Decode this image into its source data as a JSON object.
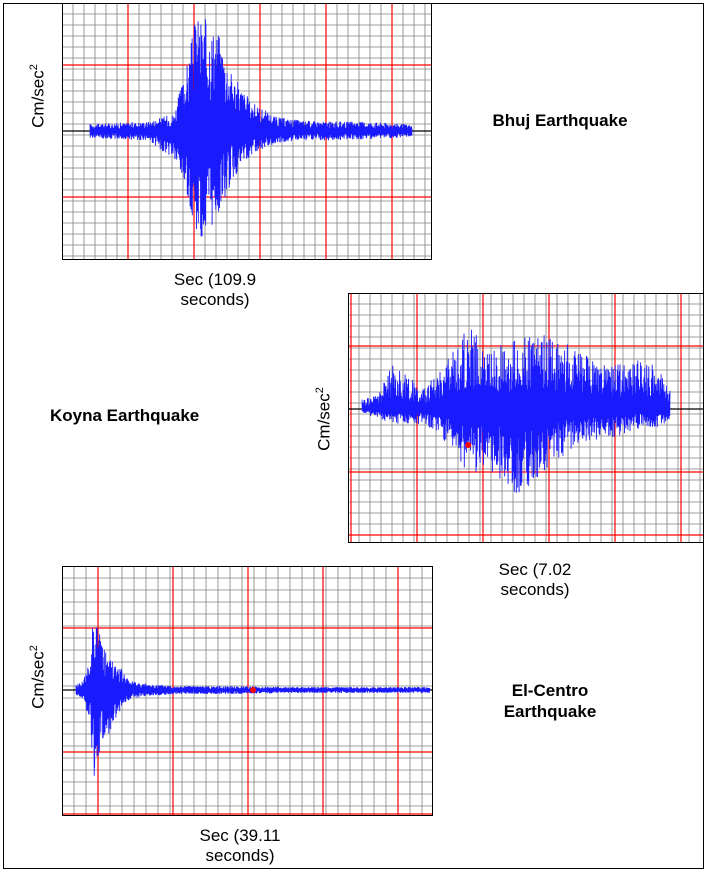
{
  "chart_data": [
    {
      "type": "line",
      "title": "Bhuj Earthquake",
      "ylabel_base": "Cm/sec",
      "ylabel_sup": "2",
      "xlabel_line1": "Sec (109.9",
      "xlabel_line2": "seconds)",
      "duration_seconds": 109.9,
      "grid": true,
      "colors": {
        "trace": "#1a1aff",
        "major_grid": "#ff0000",
        "minor_grid": "#808080",
        "axis": "#000000"
      },
      "envelope": {
        "x": [
          0,
          0.18,
          0.26,
          0.3,
          0.33,
          0.36,
          0.4,
          0.44,
          0.5,
          0.58,
          0.66,
          0.75,
          0.85,
          0.94,
          1.0
        ],
        "y_pos": [
          0.06,
          0.08,
          0.15,
          0.55,
          1.0,
          0.95,
          0.85,
          0.5,
          0.25,
          0.12,
          0.09,
          0.08,
          0.08,
          0.07,
          0.05
        ],
        "y_neg": [
          0.06,
          0.08,
          0.25,
          0.55,
          0.85,
          1.0,
          0.7,
          0.45,
          0.2,
          0.1,
          0.08,
          0.08,
          0.07,
          0.06,
          0.05
        ]
      }
    },
    {
      "type": "line",
      "title": "Koyna Earthquake",
      "ylabel_base": "Cm/sec",
      "ylabel_sup": "2",
      "xlabel_line1": "Sec (7.02",
      "xlabel_line2": "seconds)",
      "duration_seconds": 7.02,
      "grid": true,
      "colors": {
        "trace": "#1a1aff",
        "major_grid": "#ff0000",
        "minor_grid": "#808080",
        "axis": "#000000",
        "marker": "#ff0000"
      },
      "envelope": {
        "x": [
          0,
          0.05,
          0.1,
          0.2,
          0.3,
          0.35,
          0.4,
          0.5,
          0.6,
          0.7,
          0.8,
          0.9,
          0.95,
          1.0
        ],
        "y_pos": [
          0.1,
          0.15,
          0.45,
          0.2,
          0.6,
          0.85,
          0.6,
          0.7,
          0.75,
          0.6,
          0.45,
          0.5,
          0.45,
          0.3
        ],
        "y_neg": [
          0.05,
          0.1,
          0.15,
          0.15,
          0.4,
          0.75,
          0.55,
          0.9,
          0.6,
          0.35,
          0.3,
          0.2,
          0.2,
          0.15
        ]
      },
      "marker_x": 0.345
    },
    {
      "type": "line",
      "title_line1": "El-Centro",
      "title_line2": "Earthquake",
      "ylabel_base": "Cm/sec",
      "ylabel_sup": "2",
      "xlabel_line1": "Sec (39.11",
      "xlabel_line2": "seconds)",
      "duration_seconds": 39.11,
      "grid": true,
      "colors": {
        "trace": "#1a1aff",
        "major_grid": "#ff0000",
        "minor_grid": "#808080",
        "axis": "#000000",
        "marker": "#ff0000"
      },
      "envelope": {
        "x": [
          0,
          0.02,
          0.04,
          0.05,
          0.07,
          0.09,
          0.12,
          0.15,
          0.2,
          0.3,
          0.45,
          0.6,
          0.8,
          1.0
        ],
        "y_pos": [
          0.05,
          0.1,
          0.3,
          1.0,
          0.5,
          0.35,
          0.25,
          0.1,
          0.06,
          0.04,
          0.04,
          0.03,
          0.03,
          0.03
        ],
        "y_neg": [
          0.05,
          0.1,
          0.3,
          0.95,
          0.55,
          0.45,
          0.25,
          0.1,
          0.06,
          0.04,
          0.04,
          0.03,
          0.03,
          0.03
        ]
      },
      "marker_x": 0.5
    }
  ]
}
